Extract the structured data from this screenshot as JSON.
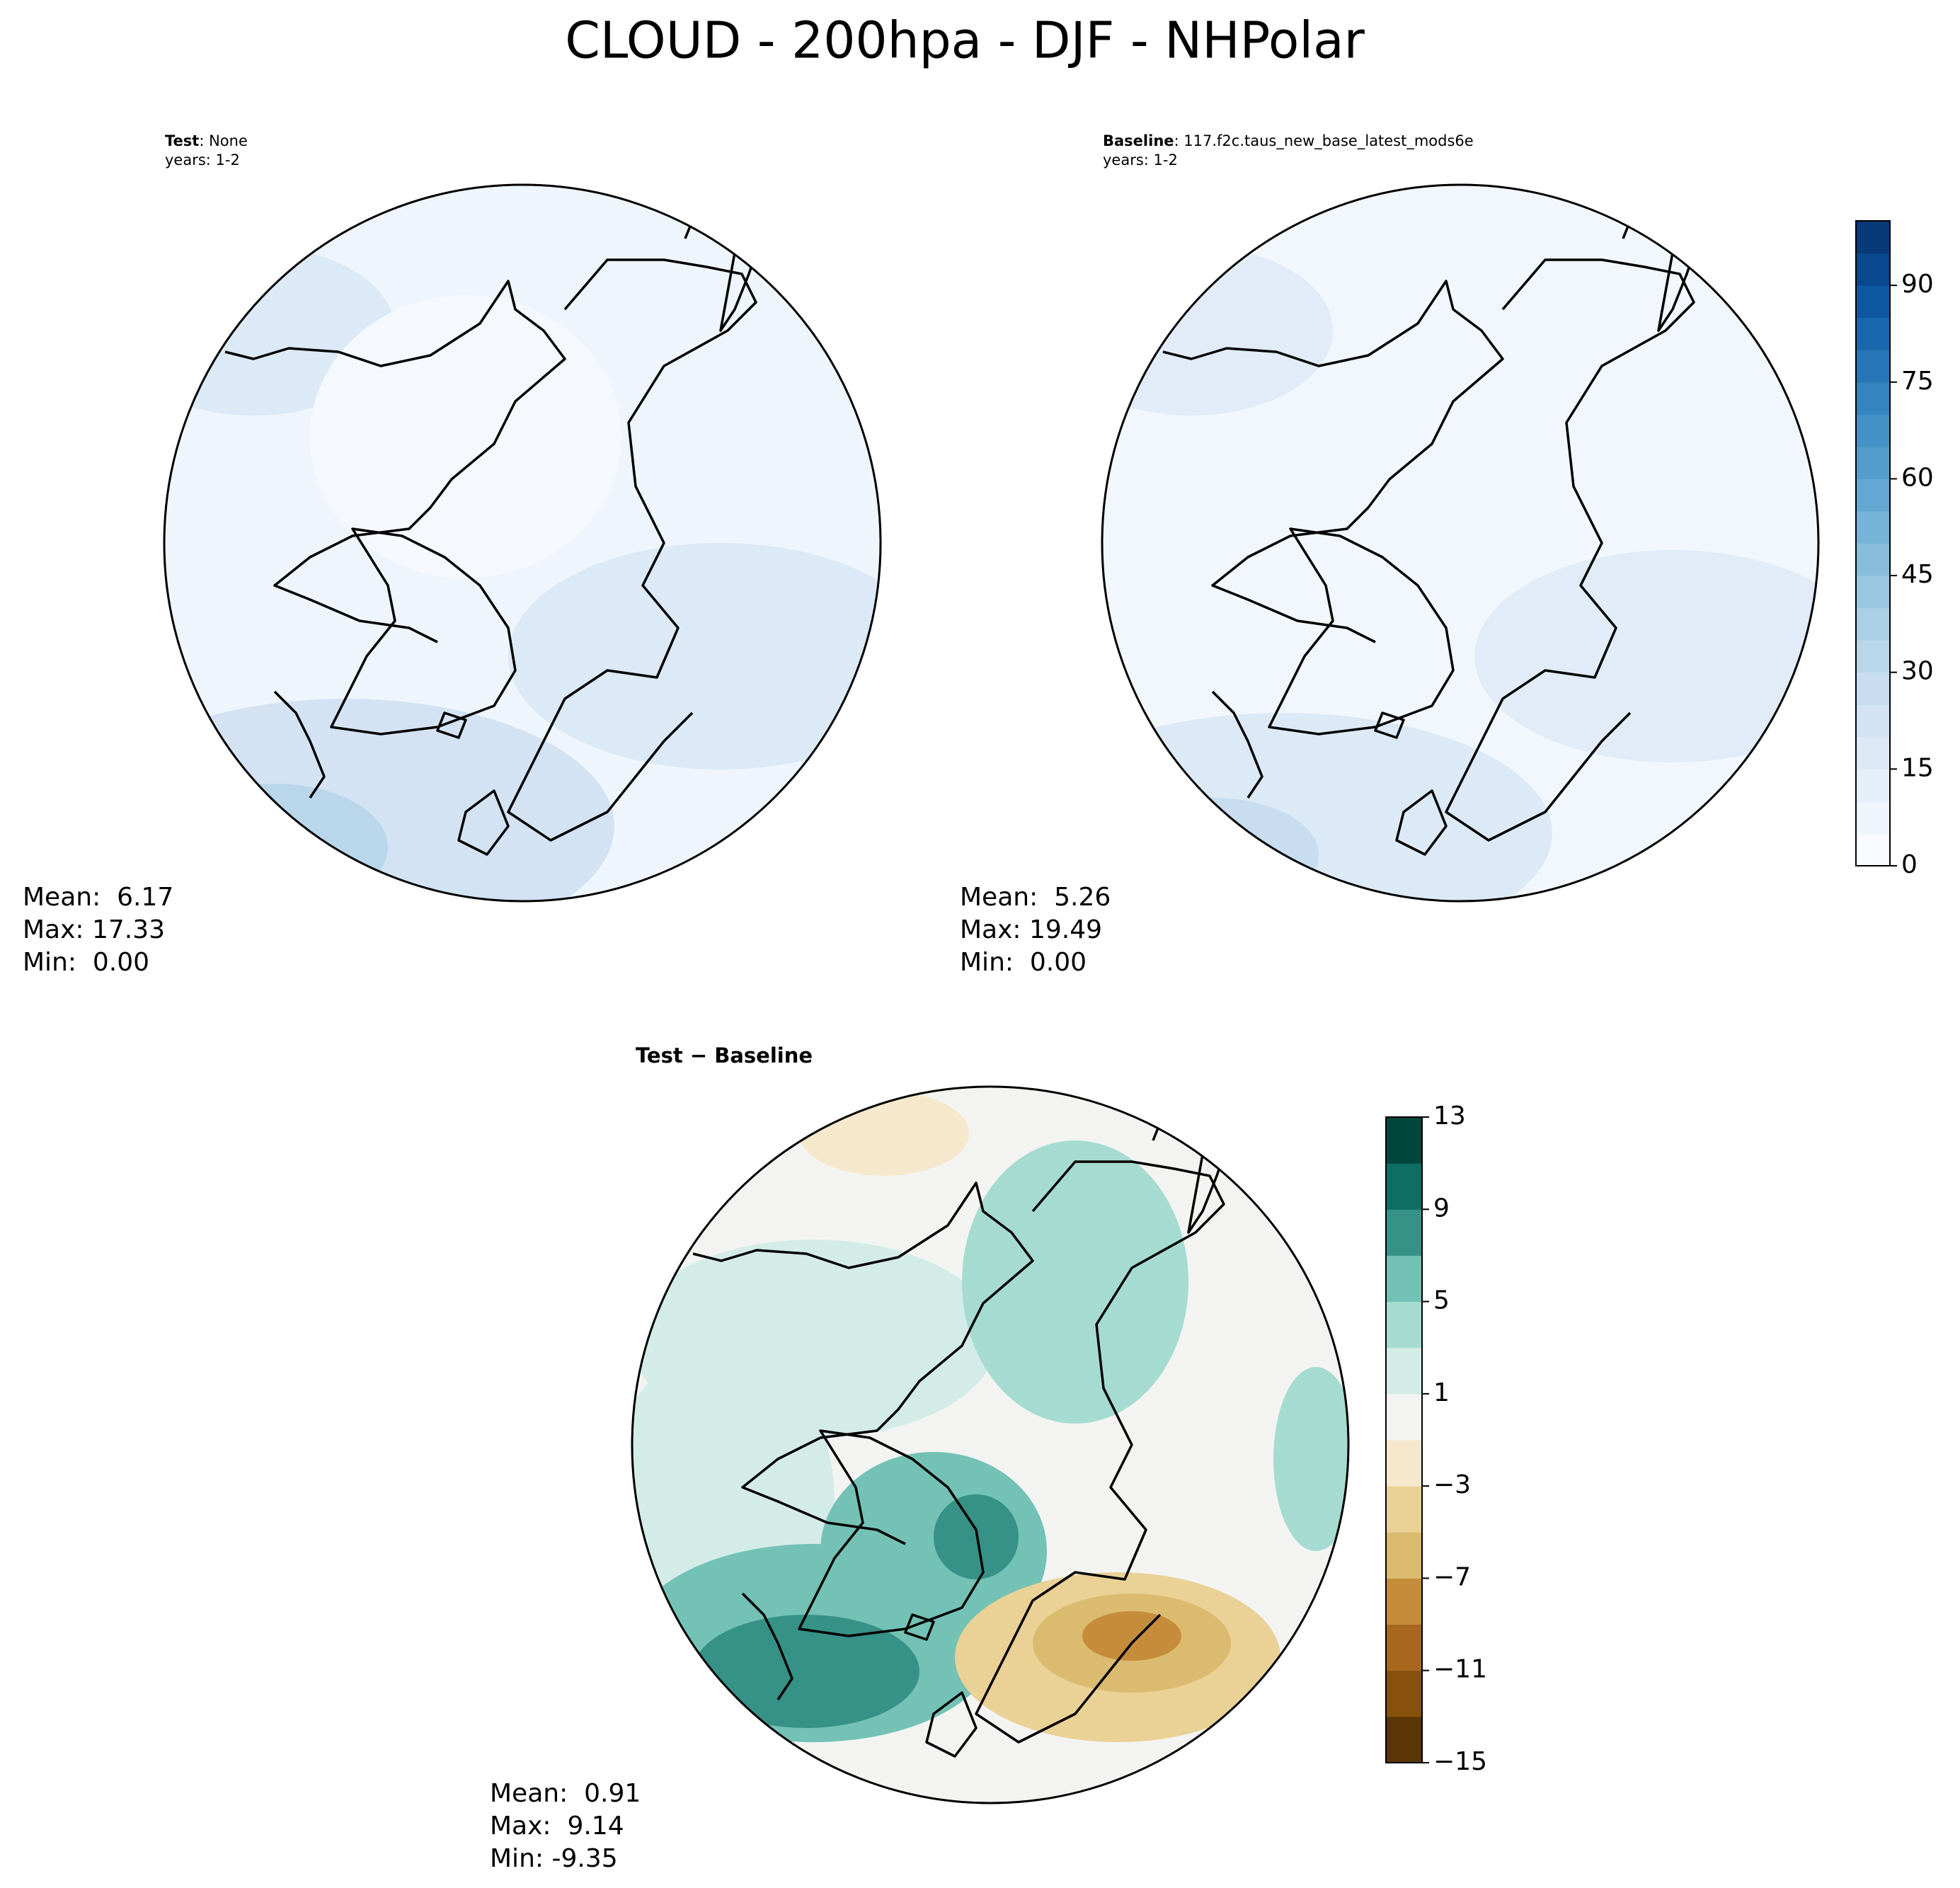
{
  "title": "CLOUD - 200hpa - DJF - NHPolar",
  "panels": [
    {
      "label": "Test",
      "name": ": None",
      "years": "years: 1-2",
      "stats": [
        "Mean:  6.17",
        "Max: 17.33",
        "Min:  0.00"
      ]
    },
    {
      "label": "Baseline",
      "name": ": 117.f2c.taus_new_base_latest_mods6e",
      "years": "years: 1-2",
      "stats": [
        "Mean:  5.26",
        "Max: 19.49",
        "Min:  0.00"
      ]
    },
    {
      "label": "Test − Baseline",
      "stats": [
        "Mean:  0.91",
        "Max:  9.14",
        "Min: -9.35"
      ]
    }
  ],
  "colorbars": [
    {
      "lim": [
        0,
        100
      ],
      "ticks": [
        0,
        15,
        30,
        45,
        60,
        75,
        90
      ],
      "colors": [
        "#f7fbff",
        "#eef5fc",
        "#e5eff9",
        "#dce9f6",
        "#d3e3f3",
        "#c8ddf0",
        "#bad6eb",
        "#abcfe5",
        "#9ac8e0",
        "#88bedc",
        "#75b4d8",
        "#62a8d3",
        "#529dcc",
        "#4391c6",
        "#3484bf",
        "#2676b8",
        "#1967ad",
        "#0e58a2",
        "#08488e",
        "#083a7a"
      ]
    },
    {
      "lim": [
        -15,
        13
      ],
      "ticks": [
        {
          "value": -15,
          "label": "−15"
        },
        {
          "value": -11,
          "label": "−11"
        },
        {
          "value": -7,
          "label": "−7"
        },
        {
          "value": -3,
          "label": "−3"
        },
        1,
        5,
        9,
        13
      ],
      "colors": [
        "#5a3505",
        "#87500c",
        "#a8671e",
        "#c48c3b",
        "#dbbb6f",
        "#ead196",
        "#f5e8cc",
        "#f3f4f2",
        "#d4ece8",
        "#a6dbd1",
        "#73c2b5",
        "#369187",
        "#0f6e63",
        "#01463b"
      ]
    }
  ]
}
